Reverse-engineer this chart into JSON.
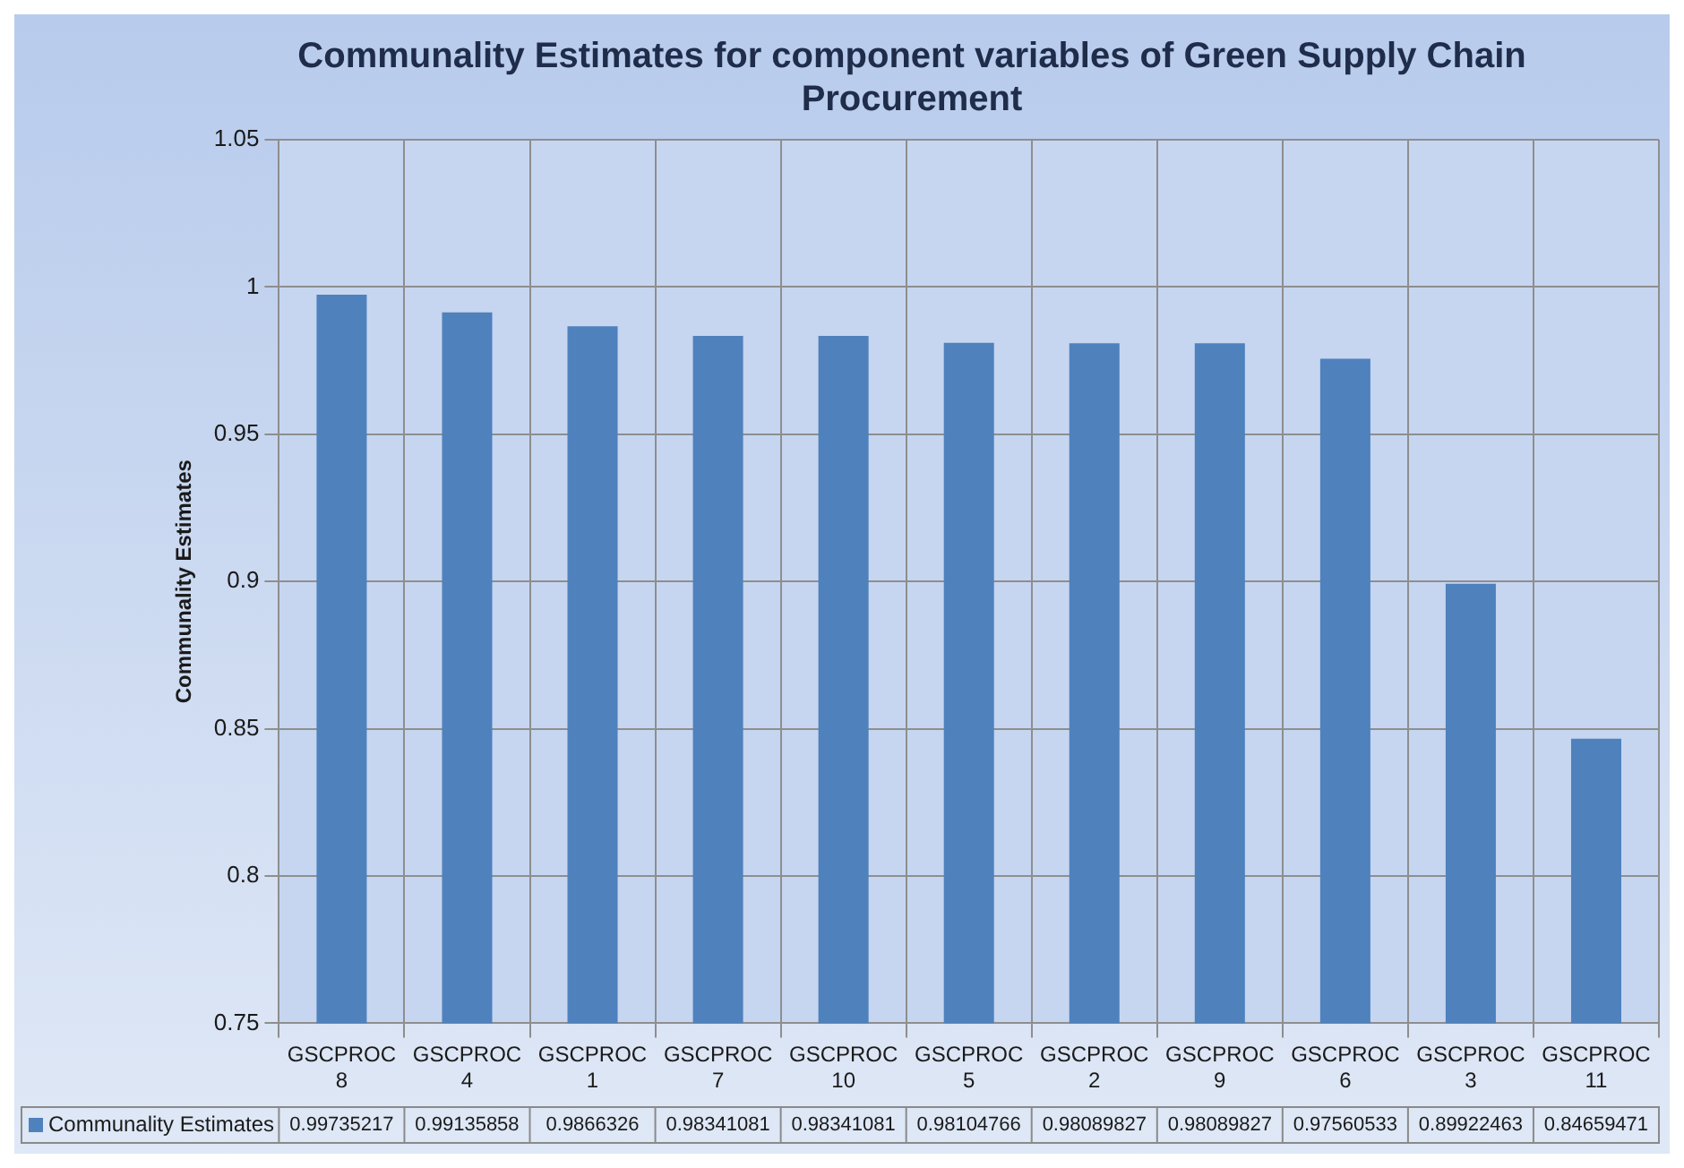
{
  "chart_data": {
    "type": "bar",
    "title": "Communality Estimates for component variables of Green Supply Chain Procurement",
    "ylabel": "Communality Estimates",
    "categories": [
      "GSCPROC 8",
      "GSCPROC 4",
      "GSCPROC 1",
      "GSCPROC 7",
      "GSCPROC 10",
      "GSCPROC 5",
      "GSCPROC 2",
      "GSCPROC 9",
      "GSCPROC 6",
      "GSCPROC 3",
      "GSCPROC 11"
    ],
    "series": [
      {
        "name": "Communality Estimates",
        "color": "#4f81bd",
        "values": [
          0.99735217,
          0.99135858,
          0.9866326,
          0.98341081,
          0.98341081,
          0.98104766,
          0.98089827,
          0.98089827,
          0.97560533,
          0.89922463,
          0.84659471
        ]
      }
    ],
    "ylim": [
      0.75,
      1.05
    ],
    "yticks": [
      0.75,
      0.8,
      0.85,
      0.9,
      0.95,
      1,
      1.05
    ],
    "grid": true,
    "legend": "bottom",
    "data_labels": true
  }
}
